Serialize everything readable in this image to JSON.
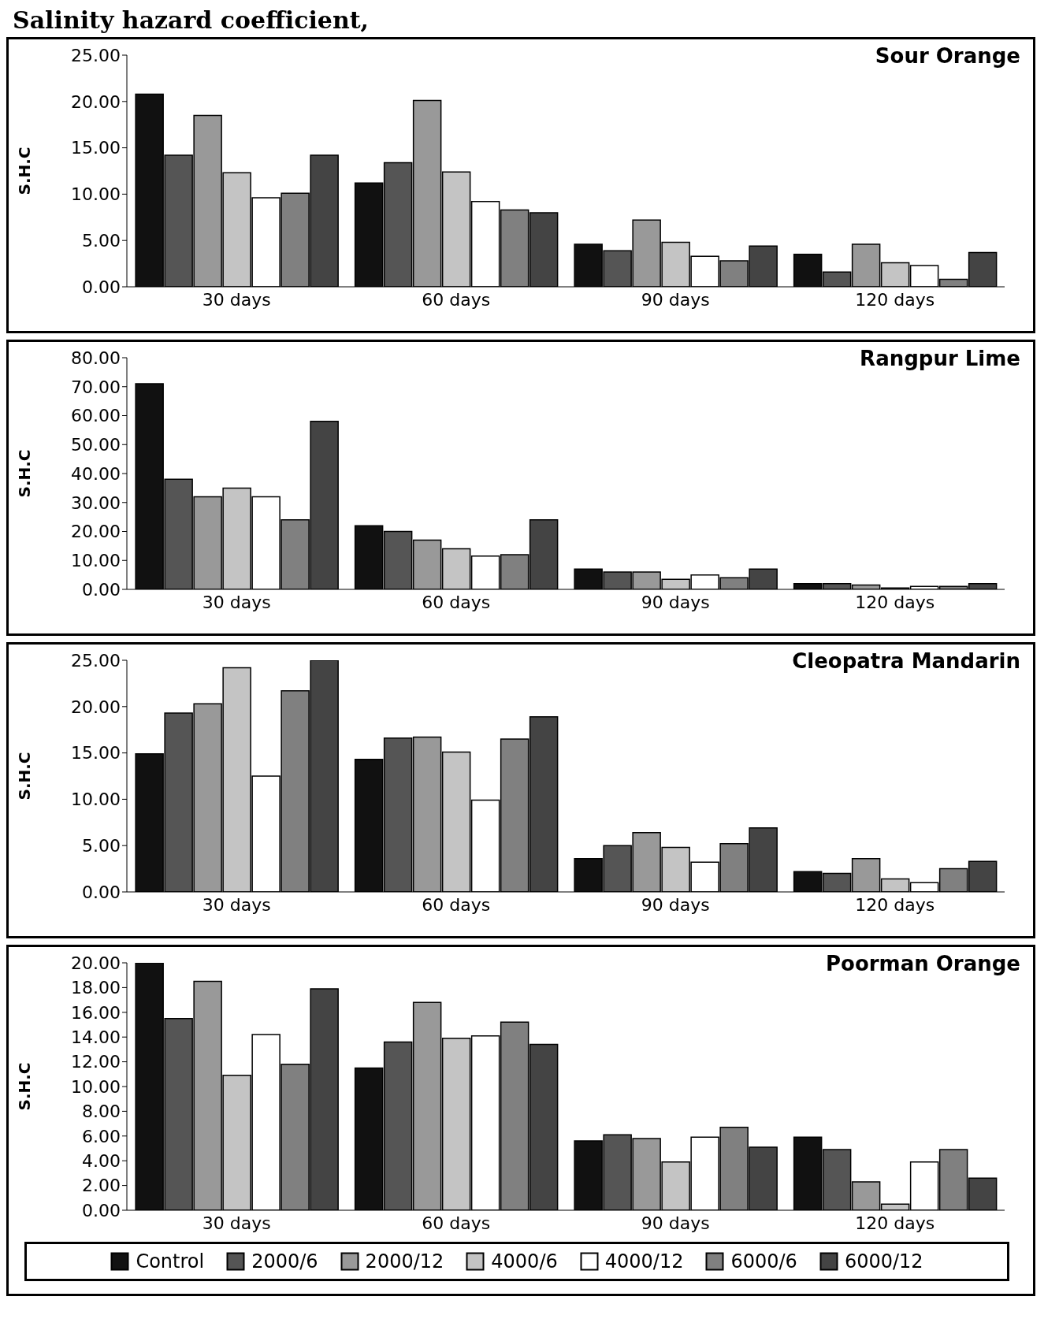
{
  "chart_data": [
    {
      "type": "bar",
      "title": "Sour Orange",
      "annotations": [
        "Salinity hazard coefficient,"
      ],
      "ylabel": "S.H.C",
      "categories": [
        "30 days",
        "60 days",
        "90 days",
        "120 days"
      ],
      "ylim": [
        0,
        25
      ],
      "yticks": [
        {
          "value": 0,
          "label": "0.00"
        },
        {
          "value": 5,
          "label": "5.00"
        },
        {
          "value": 10,
          "label": "10.00"
        },
        {
          "value": 15,
          "label": "15.00"
        },
        {
          "value": 20,
          "label": "20.00"
        },
        {
          "value": 25,
          "label": "25.00"
        }
      ],
      "grid": false,
      "legend": false,
      "series": [
        {
          "color": "#111111",
          "values": [
            20.8,
            11.2,
            4.6,
            3.5
          ]
        },
        {
          "color": "#555555",
          "values": [
            14.2,
            13.4,
            3.9,
            1.6
          ]
        },
        {
          "color": "#999999",
          "values": [
            18.5,
            20.1,
            7.2,
            4.6
          ]
        },
        {
          "color": "#c4c4c4",
          "values": [
            12.3,
            12.4,
            4.8,
            2.6
          ]
        },
        {
          "color": "#ffffff",
          "values": [
            9.6,
            9.2,
            3.3,
            2.3
          ]
        },
        {
          "color": "#808080",
          "values": [
            10.1,
            8.3,
            2.8,
            0.8
          ]
        },
        {
          "color": "#444444",
          "values": [
            14.2,
            8.0,
            4.4,
            3.7
          ]
        }
      ]
    },
    {
      "type": "bar",
      "title": "Rangpur Lime",
      "ylabel": "S.H.C",
      "categories": [
        "30 days",
        "60 days",
        "90 days",
        "120 days"
      ],
      "ylim": [
        0,
        80
      ],
      "yticks": [
        {
          "value": 0,
          "label": "0.00"
        },
        {
          "value": 10,
          "label": "10.00"
        },
        {
          "value": 20,
          "label": "20.00"
        },
        {
          "value": 30,
          "label": "30.00"
        },
        {
          "value": 40,
          "label": "40.00"
        },
        {
          "value": 50,
          "label": "50.00"
        },
        {
          "value": 60,
          "label": "60.00"
        },
        {
          "value": 70,
          "label": "70.00"
        },
        {
          "value": 80,
          "label": "80.00"
        }
      ],
      "grid": false,
      "legend": false,
      "series": [
        {
          "color": "#111111",
          "values": [
            71,
            22,
            7,
            2
          ]
        },
        {
          "color": "#555555",
          "values": [
            38,
            20,
            6,
            2
          ]
        },
        {
          "color": "#999999",
          "values": [
            32,
            17,
            6,
            1.5
          ]
        },
        {
          "color": "#c4c4c4",
          "values": [
            35,
            14,
            3.5,
            0.5
          ]
        },
        {
          "color": "#ffffff",
          "values": [
            32,
            11.5,
            5,
            1
          ]
        },
        {
          "color": "#808080",
          "values": [
            24,
            12,
            4,
            1
          ]
        },
        {
          "color": "#444444",
          "values": [
            58,
            24,
            7,
            2
          ]
        }
      ]
    },
    {
      "type": "bar",
      "title": "Cleopatra Mandarin",
      "ylabel": "S.H.C",
      "categories": [
        "30 days",
        "60 days",
        "90 days",
        "120 days"
      ],
      "ylim": [
        0,
        25
      ],
      "yticks": [
        {
          "value": 0,
          "label": "0.00"
        },
        {
          "value": 5,
          "label": "5.00"
        },
        {
          "value": 10,
          "label": "10.00"
        },
        {
          "value": 15,
          "label": "15.00"
        },
        {
          "value": 20,
          "label": "20.00"
        },
        {
          "value": 25,
          "label": "25.00"
        }
      ],
      "grid": false,
      "legend": false,
      "series": [
        {
          "color": "#111111",
          "values": [
            14.9,
            14.3,
            3.6,
            2.2
          ]
        },
        {
          "color": "#555555",
          "values": [
            19.3,
            16.6,
            5.0,
            2.0
          ]
        },
        {
          "color": "#999999",
          "values": [
            20.3,
            16.7,
            6.4,
            3.6
          ]
        },
        {
          "color": "#c4c4c4",
          "values": [
            24.2,
            15.1,
            4.8,
            1.4
          ]
        },
        {
          "color": "#ffffff",
          "values": [
            12.5,
            9.9,
            3.2,
            1.0
          ]
        },
        {
          "color": "#808080",
          "values": [
            21.7,
            16.5,
            5.2,
            2.5
          ]
        },
        {
          "color": "#444444",
          "values": [
            25.0,
            18.9,
            6.9,
            3.3
          ]
        }
      ]
    },
    {
      "type": "bar",
      "title": "Poorman Orange",
      "ylabel": "S.H.C",
      "categories": [
        "30 days",
        "60 days",
        "90 days",
        "120 days"
      ],
      "ylim": [
        0,
        20
      ],
      "yticks": [
        {
          "value": 0,
          "label": "0.00"
        },
        {
          "value": 2,
          "label": "2.00"
        },
        {
          "value": 4,
          "label": "4.00"
        },
        {
          "value": 6,
          "label": "6.00"
        },
        {
          "value": 8,
          "label": "8.00"
        },
        {
          "value": 10,
          "label": "10.00"
        },
        {
          "value": 12,
          "label": "12.00"
        },
        {
          "value": 14,
          "label": "14.00"
        },
        {
          "value": 16,
          "label": "16.00"
        },
        {
          "value": 18,
          "label": "18.00"
        },
        {
          "value": 20,
          "label": "20.00"
        }
      ],
      "grid": false,
      "legend": "bottom",
      "series": [
        {
          "name": "Control",
          "color": "#111111",
          "values": [
            20.0,
            11.5,
            5.6,
            5.9
          ]
        },
        {
          "name": "2000/6",
          "color": "#555555",
          "values": [
            15.5,
            13.6,
            6.1,
            4.9
          ]
        },
        {
          "name": "2000/12",
          "color": "#999999",
          "values": [
            18.5,
            16.8,
            5.8,
            2.3
          ]
        },
        {
          "name": "4000/6",
          "color": "#c4c4c4",
          "values": [
            10.9,
            13.9,
            3.9,
            0.5
          ]
        },
        {
          "name": "4000/12",
          "color": "#ffffff",
          "values": [
            14.2,
            14.1,
            5.9,
            3.9
          ]
        },
        {
          "name": "6000/6",
          "color": "#808080",
          "values": [
            11.8,
            15.2,
            6.7,
            4.9
          ]
        },
        {
          "name": "6000/12",
          "color": "#444444",
          "values": [
            17.9,
            13.4,
            5.1,
            2.6
          ]
        }
      ]
    }
  ]
}
